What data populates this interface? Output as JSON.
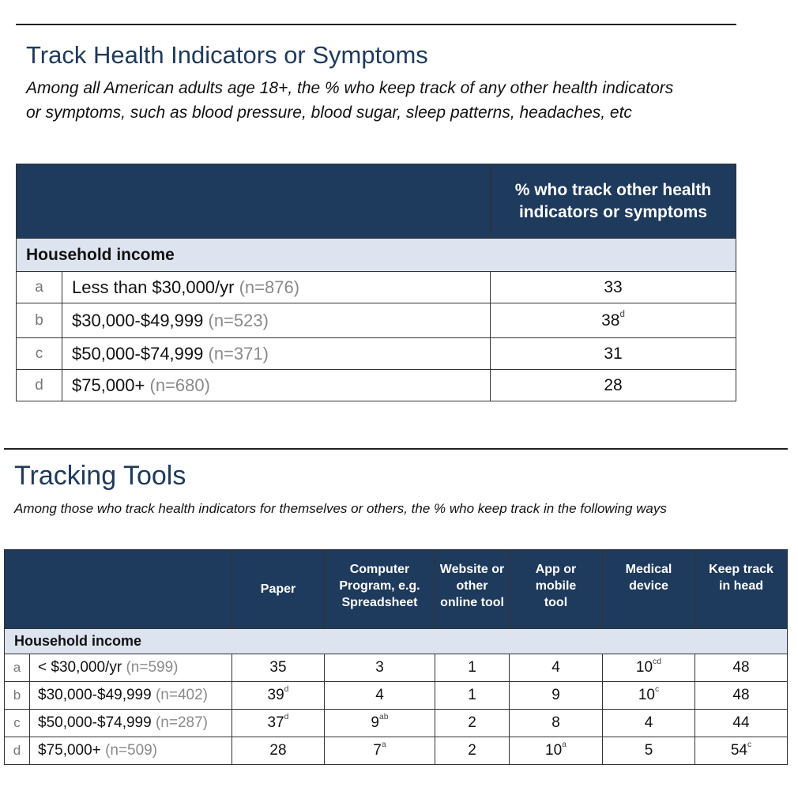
{
  "section1": {
    "title": "Track Health Indicators or Symptoms",
    "subtitle": "Among all American adults age 18+, the % who keep track of any other health indicators or symptoms, such as blood pressure, blood sugar, sleep patterns, headaches, etc",
    "table": {
      "header_col": "% who track other health indicators or symptoms",
      "section_label": "Household income",
      "rows": [
        {
          "letter": "a",
          "label": "Less than $30,000/yr",
          "n": "(n=876)",
          "value": "33",
          "sup": ""
        },
        {
          "letter": "b",
          "label": "$30,000-$49,999",
          "n": "(n=523)",
          "value": "38",
          "sup": "d"
        },
        {
          "letter": "c",
          "label": "$50,000-$74,999",
          "n": "(n=371)",
          "value": "31",
          "sup": ""
        },
        {
          "letter": "d",
          "label": "$75,000+",
          "n": "(n=680)",
          "value": "28",
          "sup": ""
        }
      ]
    }
  },
  "section2": {
    "title": "Tracking Tools",
    "subtitle": "Among those who track health indicators for themselves or others, the % who keep track in the following ways",
    "table": {
      "headers": [
        "Paper",
        "Computer Program, e.g. Spreadsheet",
        "Website or other online tool",
        "App or mobile tool",
        "Medical device",
        "Keep track in head"
      ],
      "section_label": "Household income",
      "rows": [
        {
          "letter": "a",
          "label": "< $30,000/yr",
          "n": "(n=599)",
          "cells": [
            {
              "v": "35",
              "s": ""
            },
            {
              "v": "3",
              "s": ""
            },
            {
              "v": "1",
              "s": ""
            },
            {
              "v": "4",
              "s": ""
            },
            {
              "v": "10",
              "s": "cd"
            },
            {
              "v": "48",
              "s": ""
            }
          ]
        },
        {
          "letter": "b",
          "label": "$30,000-$49,999",
          "n": "(n=402)",
          "cells": [
            {
              "v": "39",
              "s": "d"
            },
            {
              "v": "4",
              "s": ""
            },
            {
              "v": "1",
              "s": ""
            },
            {
              "v": "9",
              "s": ""
            },
            {
              "v": "10",
              "s": "c"
            },
            {
              "v": "48",
              "s": ""
            }
          ]
        },
        {
          "letter": "c",
          "label": "$50,000-$74,999",
          "n": "(n=287)",
          "cells": [
            {
              "v": "37",
              "s": "d"
            },
            {
              "v": "9",
              "s": "ab"
            },
            {
              "v": "2",
              "s": ""
            },
            {
              "v": "8",
              "s": ""
            },
            {
              "v": "4",
              "s": ""
            },
            {
              "v": "44",
              "s": ""
            }
          ]
        },
        {
          "letter": "d",
          "label": "$75,000+",
          "n": "(n=509)",
          "cells": [
            {
              "v": "28",
              "s": ""
            },
            {
              "v": "7",
              "s": "a"
            },
            {
              "v": "2",
              "s": ""
            },
            {
              "v": "10",
              "s": "a"
            },
            {
              "v": "5",
              "s": ""
            },
            {
              "v": "54",
              "s": "c"
            }
          ]
        }
      ]
    }
  }
}
